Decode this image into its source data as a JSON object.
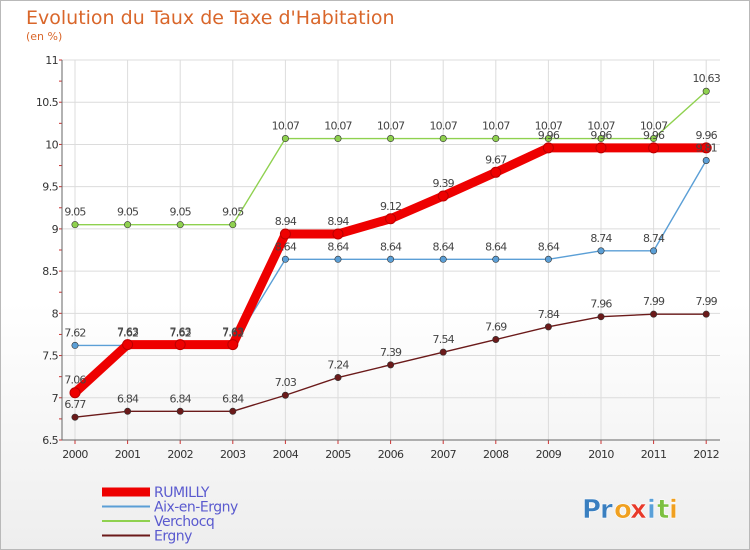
{
  "chart_data": {
    "type": "line",
    "title": "Evolution du Taux de Taxe d'Habitation",
    "subtitle": "(en %)",
    "x": [
      "2000",
      "2001",
      "2002",
      "2003",
      "2004",
      "2005",
      "2006",
      "2007",
      "2008",
      "2009",
      "2010",
      "2011",
      "2012"
    ],
    "ylim": [
      6.5,
      11
    ],
    "yticks": [
      "6.5",
      "7",
      "7.5",
      "8",
      "8.5",
      "9",
      "9.5",
      "10",
      "10.5",
      "11"
    ],
    "grid": true,
    "legend_position": "bottom-left",
    "series": [
      {
        "name": "Ergny",
        "color": "#6b1a1a",
        "values": [
          6.77,
          6.84,
          6.84,
          6.84,
          7.03,
          7.24,
          7.39,
          7.54,
          7.69,
          7.84,
          7.96,
          7.99,
          7.99
        ],
        "labels": [
          "6.77",
          "6.84",
          "6.84",
          "6.84",
          "7.03",
          "7.24",
          "7.39",
          "7.54",
          "7.69",
          "7.84",
          "7.96",
          "7.99",
          "7.99"
        ]
      },
      {
        "name": "Aix-en-Ergny",
        "color": "#5b9fd6",
        "values": [
          7.62,
          7.62,
          7.62,
          7.62,
          8.64,
          8.64,
          8.64,
          8.64,
          8.64,
          8.64,
          8.74,
          8.74,
          9.81
        ],
        "labels": [
          "7.62",
          "7.62",
          "7.62",
          "7.62",
          "8.64",
          "8.64",
          "8.64",
          "8.64",
          "8.64",
          "8.64",
          "8.74",
          "8.74",
          "9.81"
        ]
      },
      {
        "name": "Verchocq",
        "color": "#8fd14f",
        "values": [
          9.05,
          9.05,
          9.05,
          9.05,
          10.07,
          10.07,
          10.07,
          10.07,
          10.07,
          10.07,
          10.07,
          10.07,
          10.63
        ],
        "labels": [
          "9.05",
          "9.05",
          "9.05",
          "9.05",
          "10.07",
          "10.07",
          "10.07",
          "10.07",
          "10.07",
          "10.07",
          "10.07",
          "10.07",
          "10.63"
        ]
      },
      {
        "name": "RUMILLY",
        "color": "#ee0000",
        "values": [
          7.06,
          7.63,
          7.63,
          7.63,
          8.94,
          8.94,
          9.12,
          9.39,
          9.67,
          9.96,
          9.96,
          9.96,
          9.96
        ],
        "labels": [
          "7.06",
          "7.63",
          "7.63",
          "7.63",
          "8.94",
          "8.94",
          "9.12",
          "9.39",
          "9.67",
          "9.96",
          "9.96",
          "9.96",
          "9.96"
        ]
      }
    ],
    "legend": [
      {
        "name": "RUMILLY",
        "color": "#ee0000",
        "textColor": "#5a5acf",
        "thick": true
      },
      {
        "name": "Aix-en-Ergny",
        "color": "#5b9fd6",
        "textColor": "#5a5acf",
        "thick": false
      },
      {
        "name": "Verchocq",
        "color": "#8fd14f",
        "textColor": "#5a5acf",
        "thick": false
      },
      {
        "name": "Ergny",
        "color": "#6b1a1a",
        "textColor": "#5a5acf",
        "thick": false
      }
    ]
  },
  "logo": {
    "letters": [
      {
        "ch": "P",
        "color": "#3a7fc0"
      },
      {
        "ch": "r",
        "color": "#3a7fc0"
      },
      {
        "ch": "o",
        "color": "#f0a020"
      },
      {
        "ch": "x",
        "color": "#e83a2a"
      },
      {
        "ch": "i",
        "color": "#5aa0d8"
      },
      {
        "ch": "t",
        "color": "#7cc040"
      },
      {
        "ch": "i",
        "color": "#f0a020"
      }
    ]
  }
}
